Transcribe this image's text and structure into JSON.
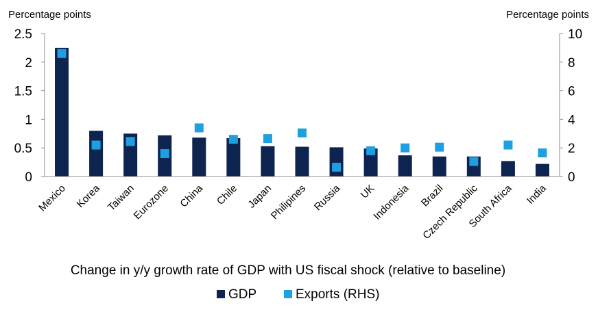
{
  "chart_data": {
    "type": "bar",
    "title": "Change in y/y growth rate of GDP with US fiscal shock (relative to baseline)",
    "left_axis_label": "Percentage points",
    "right_axis_label": "Percentage points",
    "categories": [
      "Mexico",
      "Korea",
      "Taiwan",
      "Eurozone",
      "China",
      "Chile",
      "Japan",
      "Philipines",
      "Russia",
      "UK",
      "Indonesia",
      "Brazil",
      "Czech Republic",
      "South Africa",
      "India"
    ],
    "series": [
      {
        "name": "GDP",
        "type": "bar",
        "axis": "left",
        "color": "#0d2350",
        "values": [
          2.25,
          0.8,
          0.75,
          0.72,
          0.68,
          0.67,
          0.53,
          0.52,
          0.51,
          0.49,
          0.37,
          0.35,
          0.35,
          0.27,
          0.22
        ]
      },
      {
        "name": "Exports (RHS)",
        "type": "marker",
        "axis": "right",
        "color": "#1e9fe0",
        "values": [
          8.6,
          2.2,
          2.45,
          1.6,
          3.4,
          2.6,
          2.65,
          3.05,
          0.65,
          1.8,
          2.0,
          2.05,
          1.05,
          2.2,
          1.65
        ]
      }
    ],
    "y_left": {
      "min": 0,
      "max": 2.5,
      "ticks": [
        "0",
        "0.5",
        "1",
        "1.5",
        "2",
        "2.5"
      ]
    },
    "y_right": {
      "min": 0,
      "max": 10,
      "ticks": [
        "0",
        "2",
        "4",
        "6",
        "8",
        "10"
      ]
    },
    "grid": false,
    "legend_position": "bottom"
  }
}
